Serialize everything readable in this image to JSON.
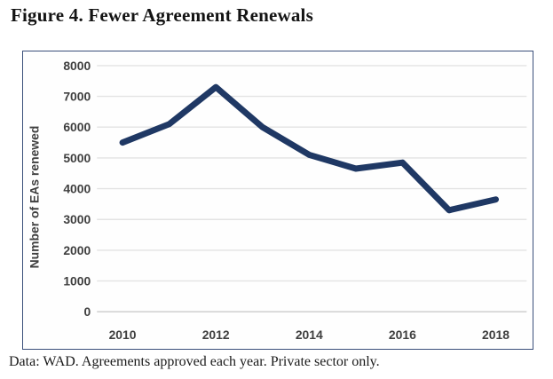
{
  "figure": {
    "title": "Figure 4. Fewer Agreement Renewals",
    "caption": "Data: WAD. Agreements approved each year. Private sector only."
  },
  "chart_data": {
    "type": "line",
    "title": "Figure 4. Fewer Agreement Renewals",
    "x": [
      2010,
      2011,
      2012,
      2013,
      2014,
      2015,
      2016,
      2017,
      2018
    ],
    "series": [
      {
        "name": "Number of EAs renewed",
        "values": [
          5500,
          6100,
          7300,
          6000,
          5100,
          4650,
          4850,
          3300,
          3650
        ]
      }
    ],
    "xlabel": "",
    "ylabel": "Number of EAs renewed",
    "ylim": [
      0,
      8000
    ],
    "yticks": [
      0,
      1000,
      2000,
      3000,
      4000,
      5000,
      6000,
      7000,
      8000
    ],
    "xticks": [
      2010,
      2012,
      2014,
      2016,
      2018
    ],
    "grid": true,
    "legend": "none",
    "colors": {
      "line": "#1F3864",
      "frame_border": "#3A4F7A",
      "gridline": "#E3E3E3",
      "axis_line": "#CFCFCF",
      "tick_text": "#3F3F3F"
    }
  }
}
